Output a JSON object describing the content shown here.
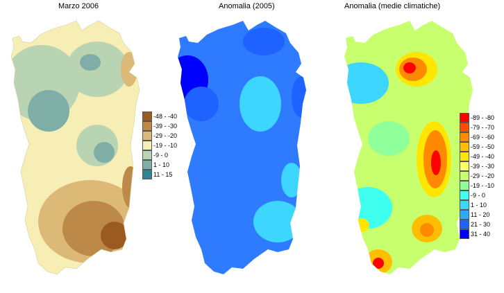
{
  "panels": [
    {
      "title": "Marzo 2006",
      "legend": [
        {
          "label": "-48 - -40",
          "color": "#9a5a22"
        },
        {
          "label": "-39 - -30",
          "color": "#bd8948"
        },
        {
          "label": "-29 - -20",
          "color": "#ddb978"
        },
        {
          "label": "-19 - -10",
          "color": "#f6eeb5"
        },
        {
          "label": "-9 - 0",
          "color": "#b9d4b2"
        },
        {
          "label": "1 - 10",
          "color": "#7eaea6"
        },
        {
          "label": "11 - 15",
          "color": "#2f8496"
        }
      ]
    },
    {
      "title": "Anomalia (2005)"
    },
    {
      "title": "Anomalia (medie climatiche)",
      "legend": [
        {
          "label": "-89 - -80",
          "color": "#ff0000"
        },
        {
          "label": "-79 - -70",
          "color": "#ff4d00"
        },
        {
          "label": "-69 - -60",
          "color": "#ff8a00"
        },
        {
          "label": "-59 - -50",
          "color": "#ffbf00"
        },
        {
          "label": "-49 - -40",
          "color": "#ffe600"
        },
        {
          "label": "-39 - -30",
          "color": "#ffff66"
        },
        {
          "label": "-29 - -20",
          "color": "#c8ff6e"
        },
        {
          "label": "-19 - -10",
          "color": "#8fff9a"
        },
        {
          "label": "-9 - 0",
          "color": "#3fffee"
        },
        {
          "label": "1 - 10",
          "color": "#3dd6ff"
        },
        {
          "label": "11 - 20",
          "color": "#2fa8ff"
        },
        {
          "label": "21 - 30",
          "color": "#1e63ff"
        },
        {
          "label": "31 - 40",
          "color": "#0000ff"
        }
      ]
    }
  ]
}
